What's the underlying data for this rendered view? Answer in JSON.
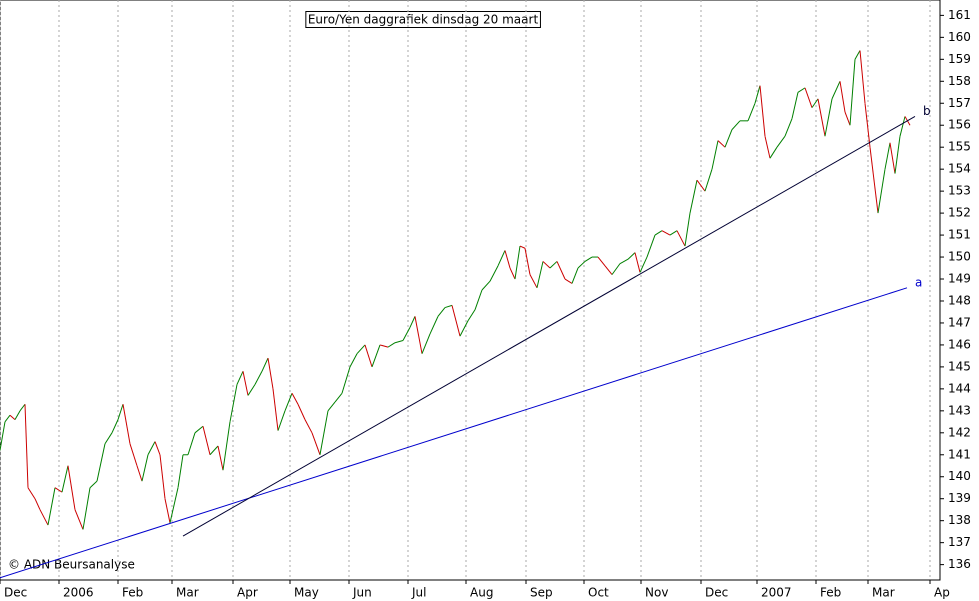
{
  "chart_data": {
    "type": "line",
    "title": "Euro/Yen daggrafiek dinsdag 20 maart",
    "annotations": [
      "© ADN Beursanalyse"
    ],
    "xlim": [
      0,
      94
    ],
    "ylim": [
      135.3,
      161.7
    ],
    "xticks": [
      {
        "value": 0,
        "label": "Dec"
      },
      {
        "value": 5.9,
        "label": "2006"
      },
      {
        "value": 11.8,
        "label": "Feb"
      },
      {
        "value": 17.2,
        "label": "Mar"
      },
      {
        "value": 23.3,
        "label": "Apr"
      },
      {
        "value": 29,
        "label": "May"
      },
      {
        "value": 34.9,
        "label": "Jun"
      },
      {
        "value": 40.8,
        "label": "Jul"
      },
      {
        "value": 46.6,
        "label": "Aug"
      },
      {
        "value": 52.6,
        "label": "Sep"
      },
      {
        "value": 58.4,
        "label": "Oct"
      },
      {
        "value": 64.1,
        "label": "Nov"
      },
      {
        "value": 70.1,
        "label": "Dec"
      },
      {
        "value": 75.7,
        "label": "2007"
      },
      {
        "value": 81.6,
        "label": "Feb"
      },
      {
        "value": 86.8,
        "label": "Mar"
      },
      {
        "value": 93,
        "label": "Ap"
      }
    ],
    "yticks": [
      136,
      137,
      138,
      139,
      140,
      141,
      142,
      143,
      144,
      145,
      146,
      147,
      148,
      149,
      150,
      151,
      152,
      153,
      154,
      155,
      156,
      157,
      158,
      159,
      160,
      161
    ],
    "grid": true,
    "colors": {
      "up": "#008000",
      "down": "#cc0000"
    },
    "series": [
      {
        "name": "Euro/Yen",
        "x": [
          0,
          0.5,
          1,
          1.5,
          2,
          2.5,
          2.8,
          3.5,
          4,
          4.8,
          5.5,
          6.2,
          6.8,
          7.5,
          8.3,
          9,
          9.7,
          10.5,
          11.2,
          11.8,
          12.3,
          13,
          13.7,
          14.2,
          14.8,
          15.5,
          16,
          16.5,
          17,
          17.8,
          18.3,
          18.8,
          19.5,
          20.3,
          21,
          21.8,
          22.3,
          23,
          23.7,
          24.3,
          24.8,
          25.5,
          26.2,
          26.8,
          27.3,
          27.8,
          28.5,
          29.2,
          29.8,
          30.5,
          31.2,
          32,
          32.8,
          33.5,
          34.2,
          35,
          35.7,
          36.5,
          37.2,
          38,
          38.8,
          39.5,
          40.3,
          41,
          41.5,
          42.2,
          43,
          43.8,
          44.5,
          45.2,
          46,
          46.8,
          47.5,
          48.2,
          49,
          49.8,
          50.5,
          51,
          51.5,
          52,
          52.5,
          53,
          53.7,
          54.3,
          55,
          55.7,
          56.5,
          57.2,
          57.8,
          58.5,
          59.2,
          59.8,
          60.5,
          61.2,
          62,
          62.8,
          63.5,
          64,
          64.7,
          65.5,
          66.2,
          67,
          67.7,
          68.5,
          69,
          69.7,
          70.5,
          71.2,
          71.8,
          72.5,
          73.2,
          74,
          74.8,
          75.5,
          76,
          76.5,
          77,
          77.7,
          78.5,
          79.2,
          79.8,
          80.5,
          81.2,
          81.8,
          82.5,
          83.2,
          84,
          84.5,
          85,
          85.5,
          86,
          86.5,
          87,
          87.8,
          88.5,
          89,
          89.5,
          90,
          90.5,
          91
        ],
        "values": [
          141.2,
          142.5,
          142.8,
          142.6,
          143.0,
          143.3,
          139.5,
          139.0,
          138.5,
          137.8,
          139.5,
          139.3,
          140.5,
          138.5,
          137.6,
          139.5,
          139.8,
          141.5,
          142.0,
          142.6,
          143.3,
          141.5,
          140.5,
          139.8,
          141.0,
          141.6,
          141.0,
          139.0,
          137.9,
          139.5,
          141.0,
          141.0,
          142.0,
          142.3,
          141.0,
          141.4,
          140.3,
          142.5,
          144.2,
          144.8,
          143.7,
          144.2,
          144.8,
          145.4,
          144.0,
          142.1,
          143.0,
          143.8,
          143.3,
          142.6,
          142.0,
          141.0,
          143.0,
          143.4,
          143.8,
          145.0,
          145.6,
          146.0,
          145.0,
          146.0,
          145.9,
          146.1,
          146.2,
          146.8,
          147.3,
          145.6,
          146.5,
          147.3,
          147.7,
          147.8,
          146.4,
          147.1,
          147.6,
          148.5,
          148.9,
          149.6,
          150.3,
          149.5,
          149.0,
          150.5,
          150.4,
          149.2,
          148.6,
          149.8,
          149.5,
          149.8,
          149.0,
          148.8,
          149.5,
          149.8,
          150.0,
          150.0,
          149.6,
          149.2,
          149.7,
          149.9,
          150.2,
          149.3,
          150.0,
          151.0,
          151.2,
          151.0,
          151.2,
          150.5,
          152.0,
          153.5,
          153.0,
          154.0,
          155.3,
          155.0,
          155.8,
          156.2,
          156.2,
          157.0,
          157.8,
          155.5,
          154.5,
          155.0,
          155.5,
          156.3,
          157.5,
          157.7,
          156.8,
          157.2,
          155.5,
          157.2,
          158.0,
          156.6,
          156.0,
          159.0,
          159.4,
          157.0,
          155.0,
          152.0,
          154.0,
          155.2,
          153.8,
          155.5,
          156.4,
          156.0
        ]
      }
    ],
    "trendlines": [
      {
        "label": "a",
        "x": [
          0,
          90.7
        ],
        "y": [
          135.4,
          148.6
        ],
        "color": "#0000cc"
      },
      {
        "label": "b",
        "x": [
          18.3,
          91.5
        ],
        "y": [
          137.3,
          156.4
        ],
        "color": "#000033"
      }
    ]
  }
}
